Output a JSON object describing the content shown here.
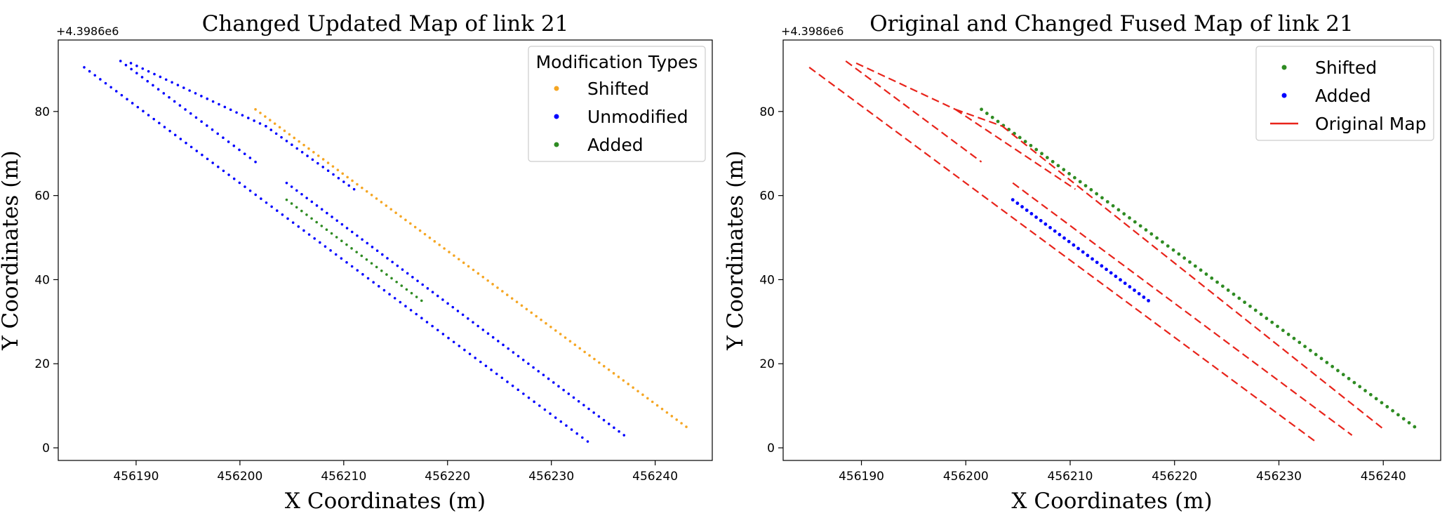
{
  "chart_data": [
    {
      "type": "scatter",
      "title": "Changed Updated Map of link 21",
      "xlabel": "X Coordinates (m)",
      "ylabel": "Y Coordinates (m)",
      "y_offset_label": "+4.3986e6",
      "xlim": [
        456182.5,
        456245.5
      ],
      "ylim": [
        -3,
        97
      ],
      "xticks": [
        456190,
        456200,
        456210,
        456220,
        456230,
        456240
      ],
      "yticks": [
        0,
        20,
        40,
        60,
        80
      ],
      "grid": false,
      "legend": {
        "title": "Modification Types",
        "placement": "top-right",
        "entries": [
          "Shifted",
          "Unmodified",
          "Added"
        ]
      },
      "series": [
        {
          "name": "Shifted",
          "kind": "points",
          "color": "#f5a623",
          "segments": [
            {
              "start": [
                456201.5,
                80.5
              ],
              "end": [
                456243.0,
                5.0
              ],
              "count": 90
            }
          ]
        },
        {
          "name": "Unmodified",
          "kind": "points",
          "color": "#0000ff",
          "segments": [
            {
              "start": [
                456185.0,
                90.5
              ],
              "end": [
                456233.5,
                1.5
              ],
              "count": 95
            },
            {
              "start": [
                456188.5,
                92.0
              ],
              "end": [
                456201.5,
                68.0
              ],
              "count": 26
            },
            {
              "start": [
                456189.5,
                91.5
              ],
              "end": [
                456202.5,
                76.5
              ],
              "count": 24
            },
            {
              "start": [
                456202.5,
                76.5
              ],
              "end": [
                456211.0,
                61.5
              ],
              "count": 18
            },
            {
              "start": [
                456204.5,
                63.0
              ],
              "end": [
                456237.0,
                3.0
              ],
              "count": 68
            }
          ]
        },
        {
          "name": "Added",
          "kind": "points",
          "color": "#2e8b22",
          "segments": [
            {
              "start": [
                456204.5,
                59.0
              ],
              "end": [
                456217.5,
                35.0
              ],
              "count": 28
            }
          ]
        }
      ]
    },
    {
      "type": "scatter",
      "title": "Original and Changed Fused Map of link 21",
      "xlabel": "X Coordinates (m)",
      "ylabel": "Y Coordinates (m)",
      "y_offset_label": "+4.3986e6",
      "xlim": [
        456182.5,
        456245.5
      ],
      "ylim": [
        -3,
        97
      ],
      "xticks": [
        456190,
        456200,
        456210,
        456220,
        456230,
        456240
      ],
      "yticks": [
        0,
        20,
        40,
        60,
        80
      ],
      "grid": false,
      "legend": {
        "title": "",
        "placement": "top-right",
        "entries": [
          "Shifted",
          "Added",
          "Original Map"
        ]
      },
      "series": [
        {
          "name": "Shifted",
          "kind": "points",
          "color": "#2e8b22",
          "segments": [
            {
              "start": [
                456201.5,
                80.5
              ],
              "end": [
                456243.0,
                5.0
              ],
              "count": 80
            }
          ]
        },
        {
          "name": "Added",
          "kind": "points",
          "color": "#0000ff",
          "segments": [
            {
              "start": [
                456204.5,
                59.0
              ],
              "end": [
                456217.5,
                35.0
              ],
              "count": 30
            }
          ]
        },
        {
          "name": "Original Map",
          "kind": "dashed-line",
          "color": "#e8231a",
          "segments": [
            {
              "start": [
                456185.0,
                90.5
              ],
              "end": [
                456233.5,
                1.5
              ]
            },
            {
              "start": [
                456188.5,
                92.0
              ],
              "end": [
                456201.5,
                68.0
              ]
            },
            {
              "start": [
                456189.5,
                91.5
              ],
              "end": [
                456199.0,
                80.5
              ]
            },
            {
              "start": [
                456199.0,
                80.5
              ],
              "end": [
                456210.5,
                61.5
              ]
            },
            {
              "start": [
                456199.0,
                80.5
              ],
              "end": [
                456203.5,
                76.5
              ]
            },
            {
              "start": [
                456203.5,
                76.5
              ],
              "end": [
                456240.0,
                4.5
              ]
            },
            {
              "start": [
                456204.5,
                63.0
              ],
              "end": [
                456237.0,
                3.0
              ]
            }
          ]
        }
      ]
    }
  ]
}
